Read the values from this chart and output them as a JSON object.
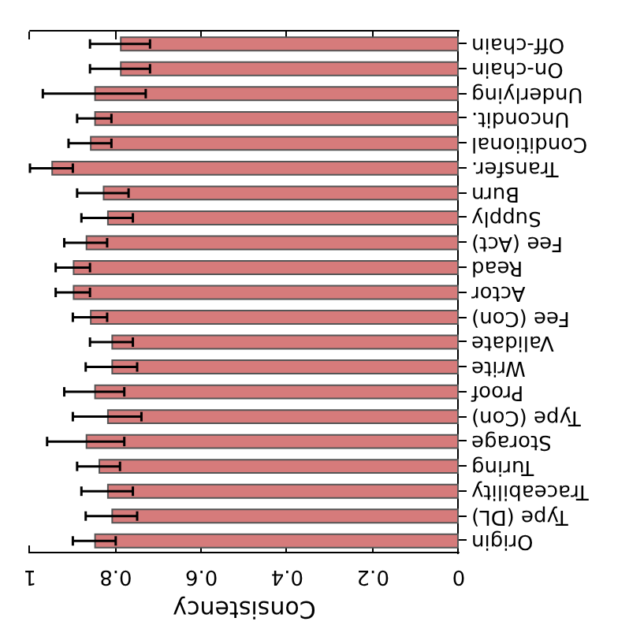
{
  "chart_data": {
    "type": "bar",
    "orientation": "horizontal",
    "xlabel": "Consistency",
    "categories": [
      "Off-chain",
      "On-chain",
      "Underlying",
      "Uncondit.",
      "Conditional",
      "Transfer.",
      "Burn",
      "Supply",
      "Fee (Act)",
      "Read",
      "Actor",
      "Fee (Con)",
      "Validate",
      "Write",
      "Proof",
      "Type (Con)",
      "Storage",
      "Turing",
      "Traceability",
      "Type (DL)",
      "Origin"
    ],
    "values": [
      0.79,
      0.79,
      0.85,
      0.85,
      0.86,
      0.95,
      0.83,
      0.82,
      0.87,
      0.9,
      0.9,
      0.86,
      0.81,
      0.81,
      0.85,
      0.82,
      0.87,
      0.84,
      0.82,
      0.81,
      0.85
    ],
    "errors": [
      0.07,
      0.07,
      0.12,
      0.04,
      0.05,
      0.05,
      0.06,
      0.06,
      0.05,
      0.04,
      0.04,
      0.04,
      0.05,
      0.06,
      0.07,
      0.08,
      0.09,
      0.05,
      0.06,
      0.06,
      0.05
    ],
    "color": "#d67b7b",
    "xlim": [
      1,
      0
    ],
    "xticks": [
      1,
      0.8,
      0.6,
      0.4,
      0.2,
      0
    ],
    "grid": false
  }
}
